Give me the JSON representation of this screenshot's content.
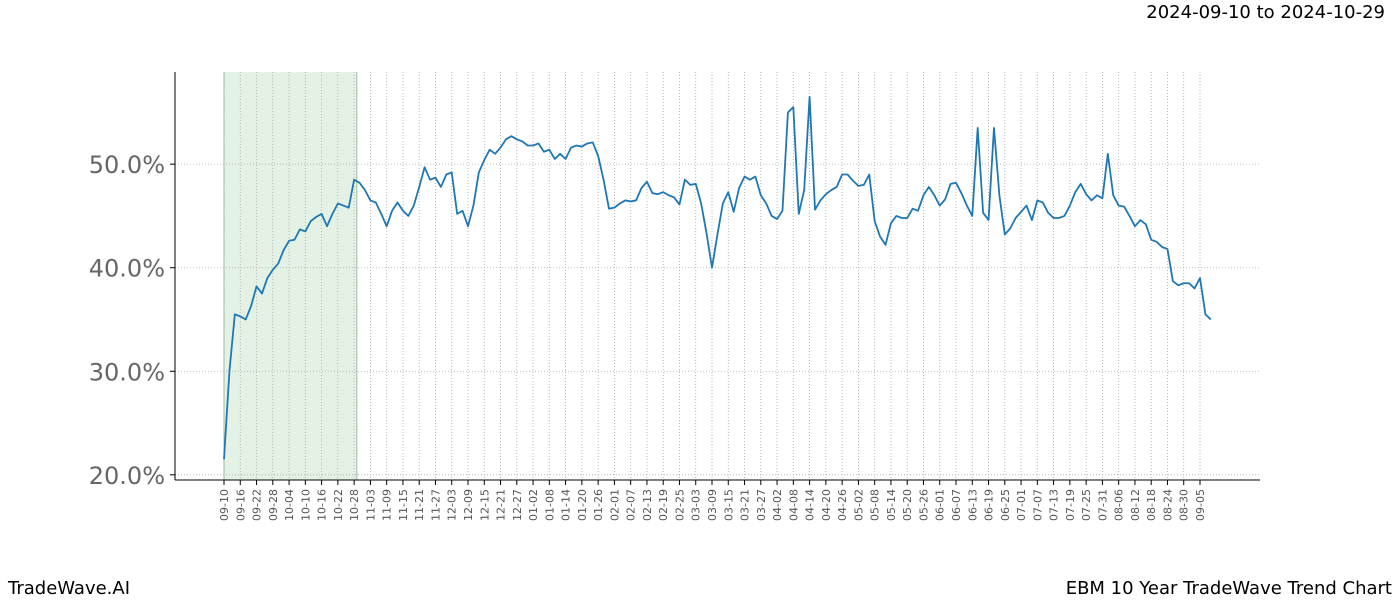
{
  "chart_data": {
    "type": "line",
    "title": "2024-09-10 to 2024-10-29",
    "footer_left": "TradeWave.AI",
    "footer_right": "EBM 10 Year TradeWave Trend Chart",
    "color": "#1f77b4",
    "highlight": {
      "start": "09-10",
      "end": "10-28",
      "color": "#c8e6c9"
    },
    "grid": true,
    "categories": [
      "09-10",
      null,
      null,
      "09-16",
      null,
      null,
      "09-22",
      null,
      null,
      "09-28",
      null,
      null,
      "10-04",
      null,
      null,
      "10-10",
      null,
      null,
      "10-16",
      null,
      null,
      "10-22",
      null,
      null,
      "10-28",
      null,
      null,
      "11-03",
      null,
      null,
      "11-09",
      null,
      null,
      "11-15",
      null,
      null,
      "11-21",
      null,
      null,
      "11-27",
      null,
      null,
      "12-03",
      null,
      null,
      "12-09",
      null,
      null,
      "12-15",
      null,
      null,
      "12-21",
      null,
      null,
      "12-27",
      null,
      null,
      "01-02",
      null,
      null,
      "01-08",
      null,
      null,
      "01-14",
      null,
      null,
      "01-20",
      null,
      null,
      "01-26",
      null,
      null,
      "02-01",
      null,
      null,
      "02-07",
      null,
      null,
      "02-13",
      null,
      null,
      "02-19",
      null,
      null,
      "02-25",
      null,
      null,
      "03-03",
      null,
      null,
      "03-09",
      null,
      null,
      "03-15",
      null,
      null,
      "03-21",
      null,
      null,
      "03-27",
      null,
      null,
      "04-02",
      null,
      null,
      "04-08",
      null,
      null,
      "04-14",
      null,
      null,
      "04-20",
      null,
      null,
      "04-26",
      null,
      null,
      "05-02",
      null,
      null,
      "05-08",
      null,
      null,
      "05-14",
      null,
      null,
      "05-20",
      null,
      null,
      "05-26",
      null,
      null,
      "06-01",
      null,
      null,
      "06-07",
      null,
      null,
      "06-13",
      null,
      null,
      "06-19",
      null,
      null,
      "06-25",
      null,
      null,
      "07-01",
      null,
      null,
      "07-07",
      null,
      null,
      "07-13",
      null,
      null,
      "07-19",
      null,
      null,
      "07-25",
      null,
      null,
      "07-31",
      null,
      null,
      "08-06",
      null,
      null,
      "08-12",
      null,
      null,
      "08-18",
      null,
      null,
      "08-24",
      null,
      null,
      "08-30",
      null,
      null,
      "09-05",
      null,
      null
    ],
    "values": [
      21.5,
      30,
      35.5,
      35.3,
      35,
      36.3,
      38.2,
      37.5,
      39,
      39.8,
      40.4,
      41.7,
      42.6,
      42.7,
      43.7,
      43.5,
      44.5,
      44.9,
      45.2,
      44,
      45.2,
      46.2,
      46,
      45.8,
      48.5,
      48.2,
      47.5,
      46.5,
      46.3,
      45.2,
      44,
      45.5,
      46.3,
      45.5,
      45,
      46,
      47.8,
      49.7,
      48.5,
      48.7,
      47.8,
      49,
      49.2,
      45.2,
      45.5,
      44,
      46,
      49.2,
      50.4,
      51.4,
      51,
      51.6,
      52.4,
      52.7,
      52.4,
      52.2,
      51.8,
      51.8,
      52,
      51.2,
      51.4,
      50.5,
      51,
      50.5,
      51.6,
      51.8,
      51.7,
      52,
      52.1,
      50.8,
      48.5,
      45.7,
      45.8,
      46.2,
      46.5,
      46.4,
      46.5,
      47.7,
      48.3,
      47.2,
      47.1,
      47.3,
      47,
      46.8,
      46.1,
      48.5,
      48,
      48.1,
      46.2,
      43.3,
      40,
      43.2,
      46.2,
      47.3,
      45.4,
      47.7,
      48.8,
      48.5,
      48.8,
      47,
      46.2,
      45,
      44.7,
      45.5,
      55,
      55.5,
      45.2,
      47.5,
      56.5,
      45.6,
      46.5,
      47.1,
      47.5,
      47.8,
      49,
      49,
      48.4,
      47.9,
      48,
      49,
      44.5,
      43,
      42.2,
      44.3,
      45,
      44.8,
      44.8,
      45.7,
      45.5,
      47,
      47.8,
      47,
      46,
      46.6,
      48.1,
      48.2,
      47.2,
      46,
      45,
      53.5,
      45.3,
      44.6,
      53.5,
      47,
      43.2,
      43.8,
      44.8,
      45.4,
      46,
      44.6,
      46.5,
      46.3,
      45.3,
      44.8,
      44.8,
      45,
      46,
      47.3,
      48.1,
      47.1,
      46.5,
      47,
      46.7,
      51,
      47,
      46,
      45.9,
      45,
      44,
      44.6,
      44.2,
      42.7,
      42.5,
      42,
      41.8,
      38.7,
      38.3,
      38.5,
      38.5,
      38,
      39,
      35.5,
      35
    ],
    "ylim": [
      19.5,
      58.9
    ],
    "yticks": [
      {
        "value": 20,
        "label": "20.0%"
      },
      {
        "value": 30,
        "label": "30.0%"
      },
      {
        "value": 40,
        "label": "40.0%"
      },
      {
        "value": 50,
        "label": "50.0%"
      }
    ]
  }
}
